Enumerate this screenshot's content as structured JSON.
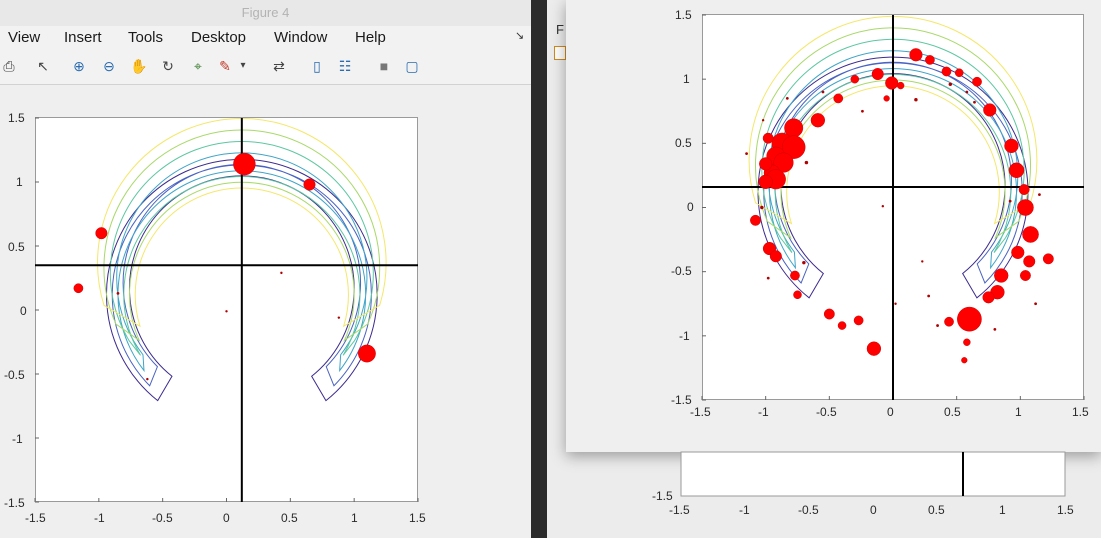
{
  "window_left": {
    "title": "Figure 4",
    "menu": [
      "View",
      "Insert",
      "Tools",
      "Desktop",
      "Window",
      "Help"
    ],
    "dock_glyph": "↘",
    "toolbar_icons": [
      {
        "name": "print-icon",
        "glyph": "⎙"
      },
      {
        "name": "pointer-icon",
        "glyph": "↖"
      },
      {
        "name": "zoom-in-icon",
        "glyph": "⊕"
      },
      {
        "name": "zoom-out-icon",
        "glyph": "⊖"
      },
      {
        "name": "pan-hand-icon",
        "glyph": "✋"
      },
      {
        "name": "rotate-3d-icon",
        "glyph": "↻"
      },
      {
        "name": "data-cursor-icon",
        "glyph": "⌖"
      },
      {
        "name": "brush-icon",
        "glyph": "✎"
      },
      {
        "name": "brush-dropdown-icon",
        "glyph": "▾"
      },
      {
        "name": "link-plot-icon",
        "glyph": "⇄"
      },
      {
        "name": "colorbar-icon",
        "glyph": "▯"
      },
      {
        "name": "legend-icon",
        "glyph": "☷"
      },
      {
        "name": "hide-tools-icon",
        "glyph": "■"
      },
      {
        "name": "dock-figure-icon",
        "glyph": "▢"
      }
    ]
  },
  "window_right": {
    "back_tab": "F",
    "back_axis_x_ticks": [
      "-1.5",
      "-1",
      "-0.5",
      "0",
      "0.5",
      "1",
      "1.5"
    ],
    "back_axis_y_tick": "-1.5"
  },
  "colors": {
    "marker": "#ff0000",
    "marker_dark": "#b00000",
    "crosshair": "#000000",
    "contour": [
      "#3d2a8f",
      "#4a62c2",
      "#3fa4c8",
      "#5cc7a0",
      "#a8d96a",
      "#f4e76a"
    ]
  },
  "chart_data": [
    {
      "type": "scatter",
      "title": "",
      "xlabel": "",
      "ylabel": "",
      "xlim": [
        -1.5,
        1.5
      ],
      "ylim": [
        -1.5,
        1.5
      ],
      "x_ticks": [
        "-1.5",
        "-1",
        "-0.5",
        "0",
        "0.5",
        "1",
        "1.5"
      ],
      "y_ticks": [
        "1.5",
        "1",
        "0.5",
        "0",
        "-0.5",
        "-1",
        "-1.5"
      ],
      "crosshair": {
        "x": 0.12,
        "y": 0.35
      },
      "contours": {
        "levels": 6,
        "shape": "crescent ring, radius ~1.0, centered near (0.12, 0.1), peak density at top"
      },
      "points": [
        {
          "x": 0.14,
          "y": 1.14,
          "w": 0.95
        },
        {
          "x": 0.65,
          "y": 0.98,
          "w": 0.5
        },
        {
          "x": -0.98,
          "y": 0.6,
          "w": 0.5
        },
        {
          "x": -1.16,
          "y": 0.17,
          "w": 0.4
        },
        {
          "x": 1.1,
          "y": -0.34,
          "w": 0.75
        },
        {
          "x": -0.85,
          "y": 0.13,
          "w": 0.12
        },
        {
          "x": 0.88,
          "y": -0.06,
          "w": 0.08
        },
        {
          "x": -0.62,
          "y": -0.54,
          "w": 0.08
        },
        {
          "x": 0.0,
          "y": -0.01,
          "w": 0.05
        },
        {
          "x": 0.43,
          "y": 0.29,
          "w": 0.04
        }
      ]
    },
    {
      "type": "scatter",
      "title": "",
      "xlabel": "",
      "ylabel": "",
      "xlim": [
        -1.5,
        1.5
      ],
      "ylim": [
        -1.5,
        1.5
      ],
      "x_ticks": [
        "-1.5",
        "-1",
        "-0.5",
        "0",
        "0.5",
        "1",
        "1.5"
      ],
      "y_ticks": [
        "1.5",
        "1",
        "0.5",
        "0",
        "-0.5",
        "-1",
        "-1.5"
      ],
      "crosshair": {
        "x": 0.0,
        "y": 0.16
      },
      "contours": {
        "levels": 6,
        "shape": "crescent ring, radius ~1.0, centered near (0.05, 0.1), peak density at top"
      },
      "points": [
        {
          "x": 0.18,
          "y": 1.19,
          "w": 0.55
        },
        {
          "x": 0.29,
          "y": 1.15,
          "w": 0.4
        },
        {
          "x": -0.12,
          "y": 1.04,
          "w": 0.5
        },
        {
          "x": -0.01,
          "y": 0.97,
          "w": 0.55
        },
        {
          "x": 0.42,
          "y": 1.06,
          "w": 0.4
        },
        {
          "x": 0.52,
          "y": 1.05,
          "w": 0.35
        },
        {
          "x": 0.66,
          "y": 0.98,
          "w": 0.4
        },
        {
          "x": 0.76,
          "y": 0.76,
          "w": 0.55
        },
        {
          "x": -0.3,
          "y": 1.0,
          "w": 0.35
        },
        {
          "x": -0.43,
          "y": 0.85,
          "w": 0.4
        },
        {
          "x": -0.59,
          "y": 0.68,
          "w": 0.6
        },
        {
          "x": -0.78,
          "y": 0.62,
          "w": 0.8
        },
        {
          "x": -0.87,
          "y": 0.5,
          "w": 0.9
        },
        {
          "x": -0.78,
          "y": 0.47,
          "w": 1.0
        },
        {
          "x": -0.92,
          "y": 0.4,
          "w": 0.8
        },
        {
          "x": -0.86,
          "y": 0.35,
          "w": 0.85
        },
        {
          "x": -0.95,
          "y": 0.27,
          "w": 0.7
        },
        {
          "x": -0.92,
          "y": 0.22,
          "w": 0.85
        },
        {
          "x": -1.0,
          "y": 0.2,
          "w": 0.6
        },
        {
          "x": -1.0,
          "y": 0.34,
          "w": 0.55
        },
        {
          "x": -0.98,
          "y": 0.54,
          "w": 0.45
        },
        {
          "x": -1.08,
          "y": -0.1,
          "w": 0.45
        },
        {
          "x": -0.97,
          "y": -0.32,
          "w": 0.55
        },
        {
          "x": -0.92,
          "y": -0.38,
          "w": 0.5
        },
        {
          "x": -0.77,
          "y": -0.53,
          "w": 0.4
        },
        {
          "x": -0.75,
          "y": -0.68,
          "w": 0.35
        },
        {
          "x": -0.5,
          "y": -0.83,
          "w": 0.45
        },
        {
          "x": -0.4,
          "y": -0.92,
          "w": 0.35
        },
        {
          "x": -0.27,
          "y": -0.88,
          "w": 0.4
        },
        {
          "x": -0.15,
          "y": -1.1,
          "w": 0.6
        },
        {
          "x": 0.93,
          "y": 0.48,
          "w": 0.6
        },
        {
          "x": 0.97,
          "y": 0.29,
          "w": 0.65
        },
        {
          "x": 1.03,
          "y": 0.14,
          "w": 0.45
        },
        {
          "x": 1.04,
          "y": 0.0,
          "w": 0.7
        },
        {
          "x": 1.08,
          "y": -0.21,
          "w": 0.7
        },
        {
          "x": 0.98,
          "y": -0.35,
          "w": 0.55
        },
        {
          "x": 1.07,
          "y": -0.42,
          "w": 0.5
        },
        {
          "x": 1.04,
          "y": -0.53,
          "w": 0.45
        },
        {
          "x": 1.22,
          "y": -0.4,
          "w": 0.45
        },
        {
          "x": 0.85,
          "y": -0.53,
          "w": 0.6
        },
        {
          "x": 0.82,
          "y": -0.66,
          "w": 0.6
        },
        {
          "x": 0.75,
          "y": -0.7,
          "w": 0.5
        },
        {
          "x": 0.6,
          "y": -0.87,
          "w": 1.05
        },
        {
          "x": 0.44,
          "y": -0.89,
          "w": 0.4
        },
        {
          "x": 0.58,
          "y": -1.05,
          "w": 0.3
        },
        {
          "x": 0.56,
          "y": -1.19,
          "w": 0.25
        },
        {
          "x": 0.06,
          "y": 0.95,
          "w": 0.3
        },
        {
          "x": -0.05,
          "y": 0.85,
          "w": 0.25
        },
        {
          "x": 0.18,
          "y": 0.84,
          "w": 0.15
        },
        {
          "x": 0.45,
          "y": 0.96,
          "w": 0.15
        },
        {
          "x": 0.58,
          "y": 0.9,
          "w": 0.12
        },
        {
          "x": -0.55,
          "y": 0.9,
          "w": 0.12
        },
        {
          "x": -0.24,
          "y": 0.75,
          "w": 0.12
        },
        {
          "x": -0.68,
          "y": 0.35,
          "w": 0.15
        },
        {
          "x": -1.03,
          "y": 0.0,
          "w": 0.15
        },
        {
          "x": -0.98,
          "y": -0.55,
          "w": 0.12
        },
        {
          "x": -0.7,
          "y": -0.43,
          "w": 0.15
        },
        {
          "x": -0.08,
          "y": 0.01,
          "w": 0.06
        },
        {
          "x": 0.92,
          "y": 0.05,
          "w": 0.12
        },
        {
          "x": 1.12,
          "y": -0.75,
          "w": 0.12
        },
        {
          "x": 0.28,
          "y": -0.69,
          "w": 0.12
        },
        {
          "x": 0.8,
          "y": -0.95,
          "w": 0.12
        },
        {
          "x": 0.23,
          "y": -0.42,
          "w": 0.1
        },
        {
          "x": 0.02,
          "y": -0.75,
          "w": 0.1
        },
        {
          "x": 0.35,
          "y": -0.92,
          "w": 0.12
        },
        {
          "x": -1.15,
          "y": 0.42,
          "w": 0.12
        },
        {
          "x": -1.02,
          "y": 0.68,
          "w": 0.1
        },
        {
          "x": 0.64,
          "y": 0.82,
          "w": 0.12
        },
        {
          "x": -0.83,
          "y": 0.85,
          "w": 0.12
        },
        {
          "x": 1.15,
          "y": 0.1,
          "w": 0.12
        }
      ]
    }
  ]
}
